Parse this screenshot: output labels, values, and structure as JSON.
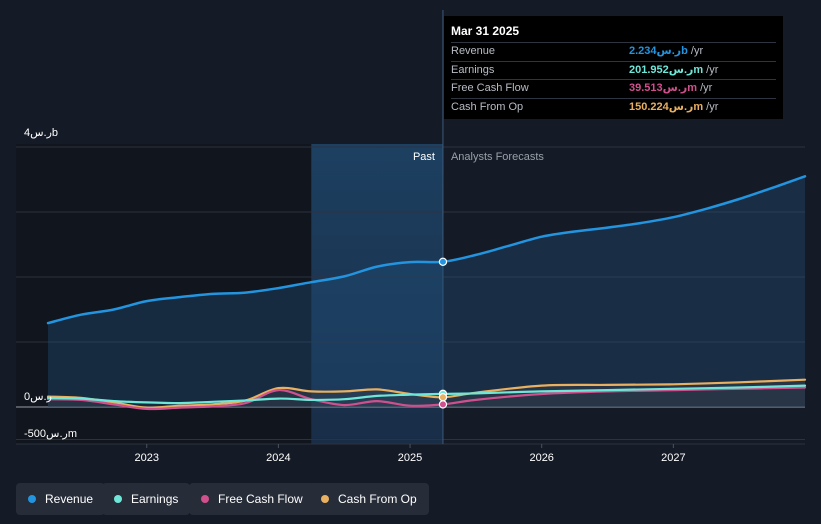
{
  "tooltip": {
    "date": "Mar 31 2025",
    "rows": [
      {
        "label": "Revenue",
        "value": "2.234",
        "unit_suffix": "ر.سb",
        "per": " /yr",
        "color": "#2394df"
      },
      {
        "label": "Earnings",
        "value": "201.952",
        "unit_suffix": "ر.سm",
        "per": " /yr",
        "color": "#6ee7d9"
      },
      {
        "label": "Free Cash Flow",
        "value": "39.513",
        "unit_suffix": "ر.سm",
        "per": " /yr",
        "color": "#d0508e"
      },
      {
        "label": "Cash From Op",
        "value": "150.224",
        "unit_suffix": "ر.سm",
        "per": " /yr",
        "color": "#e8b060"
      }
    ]
  },
  "legend": [
    {
      "label": "Revenue",
      "color": "#2394df"
    },
    {
      "label": "Earnings",
      "color": "#6ee7d9"
    },
    {
      "label": "Free Cash Flow",
      "color": "#d0508e"
    },
    {
      "label": "Cash From Op",
      "color": "#e8b060"
    }
  ],
  "chart_data": {
    "type": "line",
    "title": "",
    "units": "SAR (ر.س)",
    "y_tick_labels": [
      "4ر.سb",
      "0ر.س",
      "-500ر.سm"
    ],
    "x_tick_labels": [
      "2023",
      "2024",
      "2025",
      "2026",
      "2027"
    ],
    "past_label": "Past",
    "forecast_label": "Analysts Forecasts",
    "divider_date": 2025.25,
    "shaded_period": [
      2024.25,
      2025.25
    ],
    "xlim": [
      2022.25,
      2028.0
    ],
    "ylim": [
      -500,
      4000
    ],
    "y_gridlines": [
      -500,
      0,
      1000,
      2000,
      3000,
      4000
    ],
    "series": [
      {
        "name": "Revenue",
        "color": "#2394df",
        "x": [
          2022.25,
          2022.5,
          2022.75,
          2023.0,
          2023.25,
          2023.5,
          2023.75,
          2024.0,
          2024.25,
          2024.5,
          2024.75,
          2025.0,
          2025.25,
          2025.5,
          2025.75,
          2026.0,
          2026.25,
          2026.5,
          2026.75,
          2027.0,
          2027.25,
          2027.5,
          2027.75,
          2028.0
        ],
        "values": [
          1290,
          1420,
          1500,
          1630,
          1690,
          1740,
          1760,
          1830,
          1920,
          2010,
          2160,
          2230,
          2234,
          2340,
          2480,
          2620,
          2700,
          2760,
          2830,
          2920,
          3050,
          3200,
          3370,
          3550
        ]
      },
      {
        "name": "Earnings",
        "color": "#6ee7d9",
        "x": [
          2022.25,
          2022.5,
          2022.75,
          2023.0,
          2023.25,
          2023.5,
          2023.75,
          2024.0,
          2024.25,
          2024.5,
          2024.75,
          2025.0,
          2025.25,
          2025.5,
          2026.0,
          2026.5,
          2027.0,
          2027.5,
          2028.0
        ],
        "values": [
          140,
          130,
          90,
          70,
          60,
          80,
          100,
          130,
          110,
          120,
          170,
          190,
          202,
          210,
          240,
          260,
          280,
          300,
          330
        ]
      },
      {
        "name": "Free Cash Flow",
        "color": "#d0508e",
        "x": [
          2022.25,
          2022.5,
          2022.75,
          2023.0,
          2023.25,
          2023.5,
          2023.75,
          2024.0,
          2024.25,
          2024.5,
          2024.75,
          2025.0,
          2025.25,
          2025.5,
          2026.0,
          2026.5,
          2027.0,
          2027.5,
          2028.0
        ],
        "values": [
          120,
          110,
          40,
          -30,
          -10,
          10,
          60,
          260,
          120,
          30,
          90,
          20,
          40,
          110,
          200,
          240,
          260,
          280,
          300
        ]
      },
      {
        "name": "Cash From Op",
        "color": "#e8b060",
        "x": [
          2022.25,
          2022.5,
          2022.75,
          2023.0,
          2023.25,
          2023.5,
          2023.75,
          2024.0,
          2024.25,
          2024.5,
          2024.75,
          2025.0,
          2025.25,
          2025.5,
          2026.0,
          2026.5,
          2027.0,
          2027.5,
          2028.0
        ],
        "values": [
          160,
          140,
          70,
          -10,
          20,
          40,
          100,
          290,
          240,
          240,
          270,
          200,
          150,
          220,
          330,
          340,
          350,
          380,
          420
        ]
      }
    ]
  }
}
